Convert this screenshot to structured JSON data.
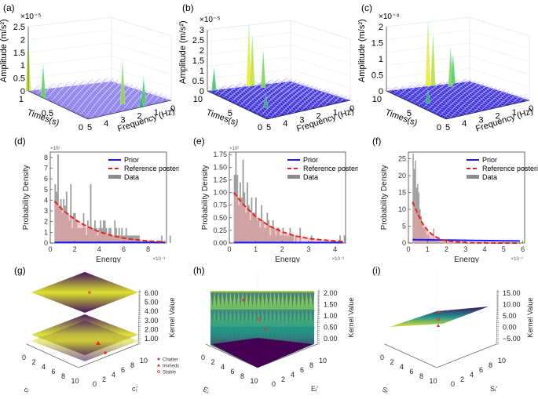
{
  "chart_data": [
    {
      "id": "a",
      "panel_label": "(a)",
      "type": "surface3d",
      "title": "",
      "zlabel": "Amplitude (m/s²)",
      "z_exponent": "×10⁻⁵",
      "z_ticks": [
        "0",
        "0.5",
        "1",
        "1.5",
        "2",
        "2.5"
      ],
      "zlim": [
        0,
        2.5
      ],
      "ylabel": "Times(s)",
      "y_ticks": [
        "1",
        "0.5",
        "0"
      ],
      "ylim": [
        0,
        1
      ],
      "xlabel": "Frequency (Hz)",
      "x_ticks": [
        "5",
        "4",
        "3",
        "2",
        "1",
        "0"
      ],
      "x_exponent": "×10³",
      "xlim": [
        0,
        5
      ],
      "peaks": [
        {
          "time": 1.0,
          "freq": 5.0,
          "amp": 2.2
        },
        {
          "time": 0.75,
          "freq": 5.0,
          "amp": 1.3
        },
        {
          "time": 0.2,
          "freq": 2.2,
          "amp": 1.7
        },
        {
          "time": 0.1,
          "freq": 1.3,
          "amp": 1.0
        },
        {
          "time": 0.0,
          "freq": 1.8,
          "amp": 0.45
        }
      ]
    },
    {
      "id": "b",
      "panel_label": "(b)",
      "type": "surface3d",
      "zlabel": "Amplitude (m/s²)",
      "z_exponent": "×10⁻⁵",
      "z_ticks": [
        "0",
        "0.5",
        "1",
        "1.5",
        "2",
        "2.5",
        "3"
      ],
      "zlim": [
        0,
        3
      ],
      "ylabel": "Times(s)",
      "y_ticks": [
        "10",
        "5",
        "0"
      ],
      "ylim": [
        0,
        10
      ],
      "xlabel": "Frequency (Hz)",
      "x_ticks": [
        "5",
        "4",
        "3",
        "2",
        "1",
        "0"
      ],
      "x_exponent": "×10³",
      "xlim": [
        0,
        5
      ],
      "peaks": [
        {
          "time": 10,
          "freq": 2.5,
          "amp": 3.0
        },
        {
          "time": 10,
          "freq": 2.3,
          "amp": 2.5
        },
        {
          "time": 9,
          "freq": 2.0,
          "amp": 1.8
        },
        {
          "time": 10,
          "freq": 4.6,
          "amp": 1.1
        },
        {
          "time": 3,
          "freq": 4.0,
          "amp": 0.6
        }
      ]
    },
    {
      "id": "c",
      "panel_label": "(c)",
      "type": "surface3d",
      "zlabel": "Amplitude (m/s²)",
      "z_exponent": "×10⁻⁴",
      "z_ticks": [
        "0",
        "0.5",
        "1",
        "1.5",
        "2"
      ],
      "zlim": [
        0,
        2
      ],
      "ylabel": "Times(s)",
      "y_ticks": [
        "10",
        "5",
        "0"
      ],
      "ylim": [
        0,
        10
      ],
      "xlabel": "Frequency (Hz)",
      "x_ticks": [
        "5",
        "4",
        "3",
        "2",
        "1",
        "0"
      ],
      "x_exponent": "×10³",
      "xlim": [
        0,
        5
      ],
      "peaks": [
        {
          "time": 10,
          "freq": 2.5,
          "amp": 2.0
        },
        {
          "time": 10,
          "freq": 2.2,
          "amp": 1.6
        },
        {
          "time": 9,
          "freq": 1.5,
          "amp": 1.2
        },
        {
          "time": 10,
          "freq": 1.0,
          "amp": 0.9
        },
        {
          "time": 5,
          "freq": 4.3,
          "amp": 0.4
        }
      ]
    },
    {
      "id": "d",
      "panel_label": "(d)",
      "type": "bar",
      "xlabel": "Energy",
      "x_exponent": "×10⁻³",
      "ylabel": "Probability Density",
      "y_exponent": "×10²",
      "xlim": [
        0,
        9.5
      ],
      "ylim": [
        0,
        8.5
      ],
      "x_ticks": [
        "0",
        "2",
        "4",
        "6",
        "8"
      ],
      "x_tick_values": [
        0,
        2,
        4,
        6,
        8
      ],
      "y_ticks": [
        "0",
        "1",
        "2",
        "3",
        "4",
        "5",
        "6",
        "7",
        "8"
      ],
      "y_tick_values": [
        0,
        1,
        2,
        3,
        4,
        5,
        6,
        7,
        8
      ],
      "legend": [
        "Prior",
        "Reference posterior",
        "Data"
      ],
      "legend_position": "top-right",
      "bin_start": 0.35,
      "bin_width": 0.116,
      "histogram": [
        5.5,
        4.8,
        8.3,
        3.5,
        4.1,
        2.8,
        4.1,
        3.5,
        4.8,
        2.8,
        2.1,
        5.5,
        1.4,
        2.8,
        2.8,
        2.1,
        1.4,
        1.4,
        1.4,
        1.4,
        2.8,
        1.4,
        0.7,
        2.1,
        1.4,
        5.5,
        1.4,
        1.4,
        2.1,
        1.4,
        0.7,
        1.4,
        2.1,
        1.4,
        2.1,
        2.1,
        1.4,
        0.7,
        1.4,
        1.4,
        0.7,
        0.7,
        2.1,
        1.4,
        0.7,
        1.4,
        0.7,
        1.4,
        0.7,
        0.7,
        1.4,
        0.7,
        0.7,
        0.7,
        0.7,
        0.7,
        0.7,
        0.7,
        0.7,
        0.7,
        0,
        0,
        0,
        0,
        0,
        0,
        0,
        0,
        0,
        0,
        0,
        0,
        0,
        0,
        0,
        0.7,
        0,
        0,
        0,
        0,
        0,
        0.7
      ],
      "series": [
        {
          "name": "Prior",
          "color": "#1a1aff",
          "style": "solid",
          "x": [
            0.35,
            9.4
          ],
          "y": [
            0.05,
            0.05
          ]
        },
        {
          "name": "Reference posterior",
          "color": "#e8231e",
          "style": "dashed",
          "x": [
            0.35,
            1,
            2,
            3,
            4,
            5,
            6,
            7,
            8,
            9.4
          ],
          "y": [
            3.9,
            3.1,
            2.2,
            1.55,
            1.05,
            0.7,
            0.45,
            0.3,
            0.18,
            0.1
          ]
        }
      ]
    },
    {
      "id": "e",
      "panel_label": "(e)",
      "type": "bar",
      "xlabel": "Energy",
      "x_exponent": "×10⁻²",
      "ylabel": "Probability Density",
      "y_exponent": "×10²",
      "xlim": [
        0,
        4.4
      ],
      "ylim": [
        0,
        1.8
      ],
      "x_ticks": [
        "0",
        "1",
        "2",
        "3",
        "4"
      ],
      "x_tick_values": [
        0,
        1,
        2,
        3,
        4
      ],
      "y_ticks": [
        "0.00",
        "0.25",
        "0.50",
        "0.75",
        "1.00",
        "1.25",
        "1.50",
        "1.75"
      ],
      "y_tick_values": [
        0,
        0.25,
        0.5,
        0.75,
        1.0,
        1.25,
        1.5,
        1.75
      ],
      "legend": [
        "Prior",
        "Reference posterior",
        "Data"
      ],
      "legend_position": "top-right",
      "bin_start": 0.17,
      "bin_width": 0.054,
      "histogram": [
        1.35,
        1.8,
        1.35,
        0.75,
        1.2,
        0.9,
        1.65,
        1.0,
        0.6,
        1.2,
        0.75,
        0.45,
        0.9,
        0.6,
        0.6,
        0.9,
        0.45,
        0.45,
        0.3,
        0.75,
        0.45,
        0.3,
        0.3,
        0.6,
        0.45,
        0.15,
        0.3,
        0.45,
        0.3,
        0.15,
        0.3,
        0.3,
        0.15,
        0.15,
        0.3,
        0.15,
        0.15,
        0.15,
        0.15,
        0.3,
        0.15,
        0.15,
        0,
        0.15,
        0,
        0,
        0.3,
        0,
        0,
        0,
        0,
        0,
        0,
        0,
        0.15,
        0,
        0,
        0,
        0,
        0,
        0,
        0,
        0,
        0,
        0,
        0,
        0,
        0,
        0,
        0,
        0,
        0,
        0,
        0,
        0.15,
        0,
        0,
        0.15
      ],
      "series": [
        {
          "name": "Prior",
          "color": "#1a1aff",
          "style": "solid",
          "x": [
            0.17,
            4.3
          ],
          "y": [
            0.01,
            0.01
          ]
        },
        {
          "name": "Reference posterior",
          "color": "#e8231e",
          "style": "dashed",
          "x": [
            0.17,
            0.5,
            1,
            1.5,
            2,
            2.5,
            3,
            3.5,
            4,
            4.3
          ],
          "y": [
            1.0,
            0.78,
            0.52,
            0.34,
            0.22,
            0.14,
            0.09,
            0.06,
            0.04,
            0.03
          ]
        }
      ]
    },
    {
      "id": "f",
      "panel_label": "(f)",
      "type": "bar",
      "xlabel": "Energy",
      "x_exponent": "×10⁻¹",
      "ylabel": "Probability Density",
      "y_exponent": "",
      "xlim": [
        0,
        6.1
      ],
      "ylim": [
        0,
        27
      ],
      "x_ticks": [
        "0",
        "1",
        "2",
        "3",
        "4",
        "5",
        "6"
      ],
      "x_tick_values": [
        0,
        1,
        2,
        3,
        4,
        5,
        6
      ],
      "y_ticks": [
        "0",
        "5",
        "10",
        "15",
        "20",
        "25"
      ],
      "y_tick_values": [
        0,
        5,
        10,
        15,
        20,
        25
      ],
      "legend": [
        "Prior",
        "Reference posterior",
        "Data"
      ],
      "legend_position": "top-right",
      "bin_start": 0.22,
      "bin_width": 0.06,
      "histogram": [
        26.5,
        22,
        24.5,
        16.5,
        17.5,
        15,
        10,
        8,
        5.5,
        4.5,
        4.5,
        3.5,
        2.5,
        2.5,
        2.0,
        1.5,
        1.5,
        1.0,
        4.3,
        1.0,
        0.8,
        0.5,
        0.5,
        0.5,
        0,
        0.5,
        0,
        0.5,
        0,
        0,
        0,
        0,
        0,
        0,
        0,
        0,
        0,
        0.5,
        0,
        0,
        0,
        0,
        0,
        0.5,
        0,
        0.5
      ],
      "series": [
        {
          "name": "Prior",
          "color": "#1a1aff",
          "style": "solid",
          "x": [
            0.22,
            5.85
          ],
          "y": [
            1.0,
            0.6
          ]
        },
        {
          "name": "Reference posterior",
          "color": "#e8231e",
          "style": "dashed",
          "x": [
            0.22,
            0.5,
            0.75,
            1,
            1.25,
            1.5,
            1.75,
            2,
            3,
            4,
            5,
            5.85
          ],
          "y": [
            12.2,
            8.5,
            5.7,
            3.8,
            2.5,
            1.6,
            1.0,
            0.6,
            0.1,
            0.02,
            0.01,
            0.0
          ]
        }
      ]
    },
    {
      "id": "g",
      "panel_label": "(g)",
      "type": "surface3d",
      "zlabel": "Kernel Value",
      "z_exponent": "·10⁻¹",
      "z_ticks": [
        "6.00",
        "5.00",
        "4.00",
        "3.00",
        "2.00",
        "1.00"
      ],
      "xlabel": "cᵢ",
      "ylabel": "cᵢ'",
      "x_ticks": [
        "0",
        "2",
        "4",
        "6",
        "8",
        "10"
      ],
      "y_ticks": [
        "0",
        "2",
        "4",
        "6",
        "8",
        "10"
      ],
      "colormap": "viridis",
      "legend": [
        {
          "label": "Chatter",
          "marker": "dot"
        },
        {
          "label": "Immediate",
          "marker": "triangle"
        },
        {
          "label": "Stable",
          "marker": "circle"
        }
      ]
    },
    {
      "id": "h",
      "panel_label": "(h)",
      "type": "surface3d",
      "zlabel": "Kernel Value",
      "z_exponent": "·10³",
      "z_ticks": [
        "2.00",
        "1.50",
        "1.00",
        "0.50",
        "0.00"
      ],
      "xlabel": "Eᵢ",
      "ylabel": "Eᵢ'",
      "x_ticks": [
        "0",
        "2",
        "4",
        "6",
        "8",
        "10"
      ],
      "y_ticks": [
        "0",
        "2",
        "4",
        "6",
        "8",
        "10"
      ],
      "colormap": "viridis"
    },
    {
      "id": "i",
      "panel_label": "(i)",
      "type": "surface3d",
      "zlabel": "Kernel Value",
      "z_ticks": [
        "15.00",
        "10.00",
        "5.00",
        "0.00",
        "−5.00"
      ],
      "xlabel": "Sᵢ",
      "ylabel": "Sᵢ'",
      "x_ticks": [
        "0",
        "2",
        "4",
        "6",
        "8",
        "10"
      ],
      "y_ticks": [
        "0",
        "2",
        "4",
        "6",
        "8",
        "10"
      ],
      "colormap": "viridis"
    }
  ]
}
